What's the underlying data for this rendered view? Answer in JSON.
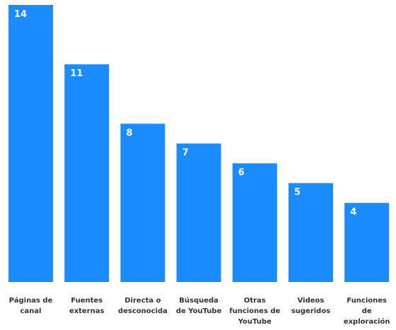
{
  "chart_data": {
    "type": "bar",
    "title": "",
    "xlabel": "",
    "ylabel": "",
    "categories": [
      [
        "Páginas de",
        "canal"
      ],
      [
        "Fuentes",
        "externas"
      ],
      [
        "Directa o",
        "desconocida"
      ],
      [
        "Búsqueda",
        "de YouTube"
      ],
      [
        "Otras",
        "funciones de",
        "YouTube"
      ],
      [
        "Videos",
        "sugeridos"
      ],
      [
        "Funciones",
        "de",
        "exploración"
      ]
    ],
    "values": [
      14,
      11,
      8,
      7,
      6,
      5,
      4
    ],
    "ylim": [
      0,
      14
    ],
    "grid": false,
    "legend": "none",
    "colors": {
      "bar": "#1a8cff",
      "value_label": "#ffffff",
      "category_label": "#333333"
    }
  }
}
